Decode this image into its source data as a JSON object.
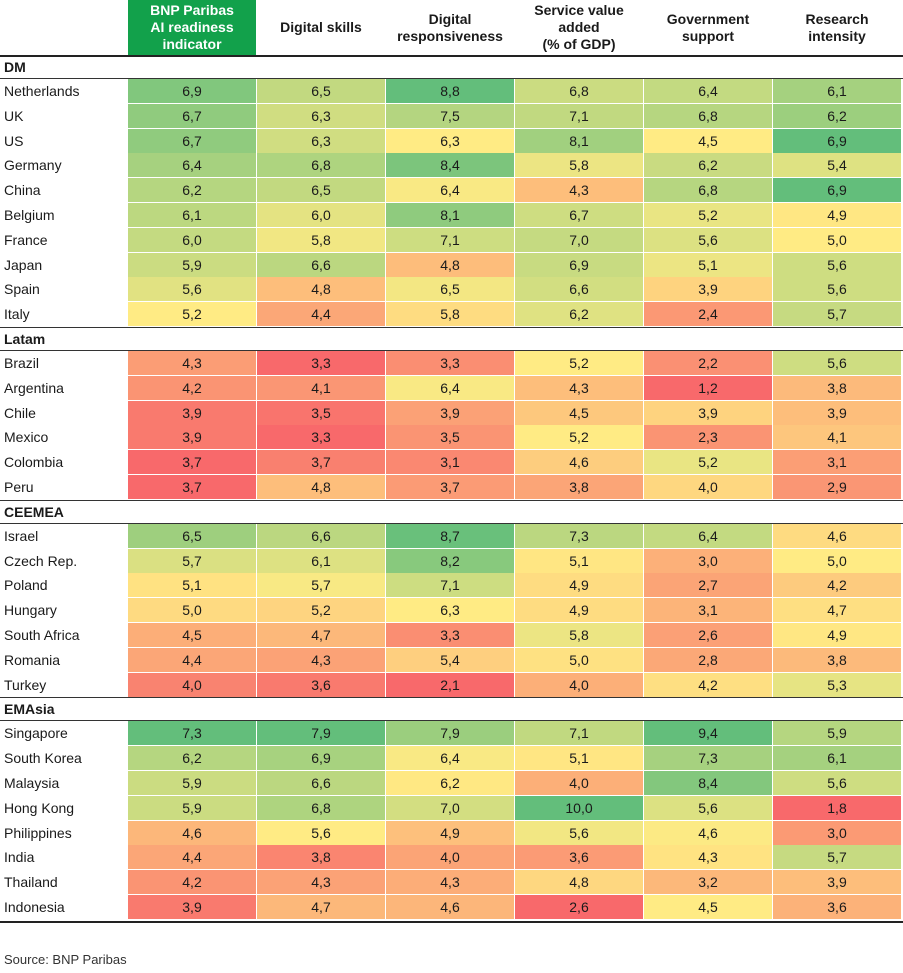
{
  "chart_data": {
    "type": "table",
    "columns": [
      "BNP Paribas\nAI readiness\nindicator",
      "Digital skills",
      "Digital\nresponsiveness",
      "Service value\nadded\n(% of GDP)",
      "Government\nsupport",
      "Research intensity"
    ],
    "highlight_column_color": "#12a14b",
    "color_scale": {
      "low": "#f8696b",
      "mid": "#ffeb84",
      "high": "#63be7b"
    },
    "groups": [
      {
        "name": "DM",
        "rows": [
          {
            "label": "Netherlands",
            "values": [
              "6,9",
              "6,5",
              "8,8",
              "6,8",
              "6,4",
              "6,1"
            ]
          },
          {
            "label": "UK",
            "values": [
              "6,7",
              "6,3",
              "7,5",
              "7,1",
              "6,8",
              "6,2"
            ]
          },
          {
            "label": "US",
            "values": [
              "6,7",
              "6,3",
              "6,3",
              "8,1",
              "4,5",
              "6,9"
            ]
          },
          {
            "label": "Germany",
            "values": [
              "6,4",
              "6,8",
              "8,4",
              "5,8",
              "6,2",
              "5,4"
            ]
          },
          {
            "label": "China",
            "values": [
              "6,2",
              "6,5",
              "6,4",
              "4,3",
              "6,8",
              "6,9"
            ]
          },
          {
            "label": "Belgium",
            "values": [
              "6,1",
              "6,0",
              "8,1",
              "6,7",
              "5,2",
              "4,9"
            ]
          },
          {
            "label": "France",
            "values": [
              "6,0",
              "5,8",
              "7,1",
              "7,0",
              "5,6",
              "5,0"
            ]
          },
          {
            "label": "Japan",
            "values": [
              "5,9",
              "6,6",
              "4,8",
              "6,9",
              "5,1",
              "5,6"
            ]
          },
          {
            "label": "Spain",
            "values": [
              "5,6",
              "4,8",
              "6,5",
              "6,6",
              "3,9",
              "5,6"
            ]
          },
          {
            "label": "Italy",
            "values": [
              "5,2",
              "4,4",
              "5,8",
              "6,2",
              "2,4",
              "5,7"
            ]
          }
        ]
      },
      {
        "name": "Latam",
        "rows": [
          {
            "label": "Brazil",
            "values": [
              "4,3",
              "3,3",
              "3,3",
              "5,2",
              "2,2",
              "5,6"
            ]
          },
          {
            "label": "Argentina",
            "values": [
              "4,2",
              "4,1",
              "6,4",
              "4,3",
              "1,2",
              "3,8"
            ]
          },
          {
            "label": "Chile",
            "values": [
              "3,9",
              "3,5",
              "3,9",
              "4,5",
              "3,9",
              "3,9"
            ]
          },
          {
            "label": "Mexico",
            "values": [
              "3,9",
              "3,3",
              "3,5",
              "5,2",
              "2,3",
              "4,1"
            ]
          },
          {
            "label": "Colombia",
            "values": [
              "3,7",
              "3,7",
              "3,1",
              "4,6",
              "5,2",
              "3,1"
            ]
          },
          {
            "label": "Peru",
            "values": [
              "3,7",
              "4,8",
              "3,7",
              "3,8",
              "4,0",
              "2,9"
            ]
          }
        ]
      },
      {
        "name": "CEEMEA",
        "rows": [
          {
            "label": "Israel",
            "values": [
              "6,5",
              "6,6",
              "8,7",
              "7,3",
              "6,4",
              "4,6"
            ]
          },
          {
            "label": "Czech Rep.",
            "values": [
              "5,7",
              "6,1",
              "8,2",
              "5,1",
              "3,0",
              "5,0"
            ]
          },
          {
            "label": "Poland",
            "values": [
              "5,1",
              "5,7",
              "7,1",
              "4,9",
              "2,7",
              "4,2"
            ]
          },
          {
            "label": "Hungary",
            "values": [
              "5,0",
              "5,2",
              "6,3",
              "4,9",
              "3,1",
              "4,7"
            ]
          },
          {
            "label": "South Africa",
            "values": [
              "4,5",
              "4,7",
              "3,3",
              "5,8",
              "2,6",
              "4,9"
            ]
          },
          {
            "label": "Romania",
            "values": [
              "4,4",
              "4,3",
              "5,4",
              "5,0",
              "2,8",
              "3,8"
            ]
          },
          {
            "label": "Turkey",
            "values": [
              "4,0",
              "3,6",
              "2,1",
              "4,0",
              "4,2",
              "5,3"
            ]
          }
        ]
      },
      {
        "name": "EMAsia",
        "rows": [
          {
            "label": "Singapore",
            "values": [
              "7,3",
              "7,9",
              "7,9",
              "7,1",
              "9,4",
              "5,9"
            ]
          },
          {
            "label": "South Korea",
            "values": [
              "6,2",
              "6,9",
              "6,4",
              "5,1",
              "7,3",
              "6,1"
            ]
          },
          {
            "label": "Malaysia",
            "values": [
              "5,9",
              "6,6",
              "6,2",
              "4,0",
              "8,4",
              "5,6"
            ]
          },
          {
            "label": "Hong Kong",
            "values": [
              "5,9",
              "6,8",
              "7,0",
              "10,0",
              "5,6",
              "1,8"
            ]
          },
          {
            "label": "Philippines",
            "values": [
              "4,6",
              "5,6",
              "4,9",
              "5,6",
              "4,6",
              "3,0"
            ]
          },
          {
            "label": "India",
            "values": [
              "4,4",
              "3,8",
              "4,0",
              "3,6",
              "4,3",
              "5,7"
            ]
          },
          {
            "label": "Thailand",
            "values": [
              "4,2",
              "4,3",
              "4,3",
              "4,8",
              "3,2",
              "3,9"
            ]
          },
          {
            "label": "Indonesia",
            "values": [
              "3,9",
              "4,7",
              "4,6",
              "2,6",
              "4,5",
              "3,6"
            ]
          }
        ]
      }
    ]
  },
  "footer": {
    "source": "Source: BNP Paribas"
  }
}
